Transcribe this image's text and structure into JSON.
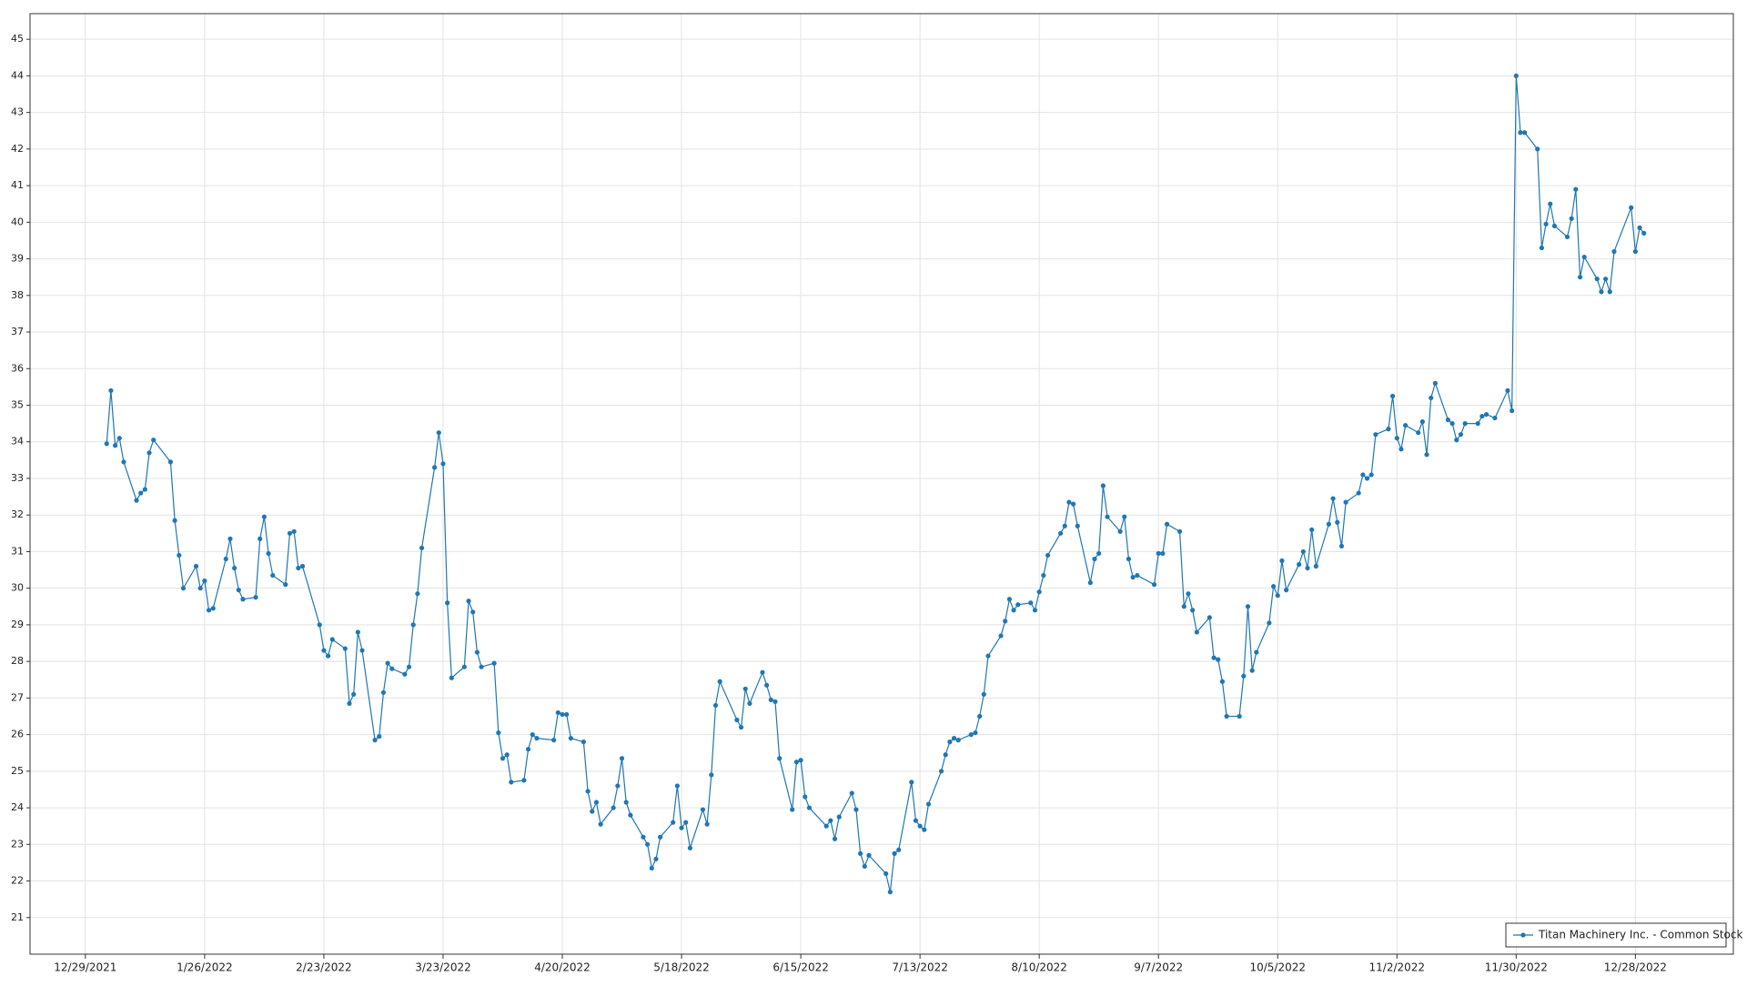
{
  "chart_data": {
    "type": "line",
    "x": [
      "1/3/2022",
      "1/4/2022",
      "1/5/2022",
      "1/6/2022",
      "1/7/2022",
      "1/10/2022",
      "1/11/2022",
      "1/12/2022",
      "1/13/2022",
      "1/14/2022",
      "1/18/2022",
      "1/19/2022",
      "1/20/2022",
      "1/21/2022",
      "1/24/2022",
      "1/25/2022",
      "1/26/2022",
      "1/27/2022",
      "1/28/2022",
      "1/31/2022",
      "2/1/2022",
      "2/2/2022",
      "2/3/2022",
      "2/4/2022",
      "2/7/2022",
      "2/8/2022",
      "2/9/2022",
      "2/10/2022",
      "2/11/2022",
      "2/14/2022",
      "2/15/2022",
      "2/16/2022",
      "2/17/2022",
      "2/18/2022",
      "2/22/2022",
      "2/23/2022",
      "2/24/2022",
      "2/25/2022",
      "2/28/2022",
      "3/1/2022",
      "3/2/2022",
      "3/3/2022",
      "3/4/2022",
      "3/7/2022",
      "3/8/2022",
      "3/9/2022",
      "3/10/2022",
      "3/11/2022",
      "3/14/2022",
      "3/15/2022",
      "3/16/2022",
      "3/17/2022",
      "3/18/2022",
      "3/21/2022",
      "3/22/2022",
      "3/23/2022",
      "3/24/2022",
      "3/25/2022",
      "3/28/2022",
      "3/29/2022",
      "3/30/2022",
      "3/31/2022",
      "4/1/2022",
      "4/4/2022",
      "4/5/2022",
      "4/6/2022",
      "4/7/2022",
      "4/8/2022",
      "4/11/2022",
      "4/12/2022",
      "4/13/2022",
      "4/14/2022",
      "4/18/2022",
      "4/19/2022",
      "4/20/2022",
      "4/21/2022",
      "4/22/2022",
      "4/25/2022",
      "4/26/2022",
      "4/27/2022",
      "4/28/2022",
      "4/29/2022",
      "5/2/2022",
      "5/3/2022",
      "5/4/2022",
      "5/5/2022",
      "5/6/2022",
      "5/9/2022",
      "5/10/2022",
      "5/11/2022",
      "5/12/2022",
      "5/13/2022",
      "5/16/2022",
      "5/17/2022",
      "5/18/2022",
      "5/19/2022",
      "5/20/2022",
      "5/23/2022",
      "5/24/2022",
      "5/25/2022",
      "5/26/2022",
      "5/27/2022",
      "5/31/2022",
      "6/1/2022",
      "6/2/2022",
      "6/3/2022",
      "6/6/2022",
      "6/7/2022",
      "6/8/2022",
      "6/9/2022",
      "6/10/2022",
      "6/13/2022",
      "6/14/2022",
      "6/15/2022",
      "6/16/2022",
      "6/17/2022",
      "6/21/2022",
      "6/22/2022",
      "6/23/2022",
      "6/24/2022",
      "6/27/2022",
      "6/28/2022",
      "6/29/2022",
      "6/30/2022",
      "7/1/2022",
      "7/5/2022",
      "7/6/2022",
      "7/7/2022",
      "7/8/2022",
      "7/11/2022",
      "7/12/2022",
      "7/13/2022",
      "7/14/2022",
      "7/15/2022",
      "7/18/2022",
      "7/19/2022",
      "7/20/2022",
      "7/21/2022",
      "7/22/2022",
      "7/25/2022",
      "7/26/2022",
      "7/27/2022",
      "7/28/2022",
      "7/29/2022",
      "8/1/2022",
      "8/2/2022",
      "8/3/2022",
      "8/4/2022",
      "8/5/2022",
      "8/8/2022",
      "8/9/2022",
      "8/10/2022",
      "8/11/2022",
      "8/12/2022",
      "8/15/2022",
      "8/16/2022",
      "8/17/2022",
      "8/18/2022",
      "8/19/2022",
      "8/22/2022",
      "8/23/2022",
      "8/24/2022",
      "8/25/2022",
      "8/26/2022",
      "8/29/2022",
      "8/30/2022",
      "8/31/2022",
      "9/1/2022",
      "9/2/2022",
      "9/6/2022",
      "9/7/2022",
      "9/8/2022",
      "9/9/2022",
      "9/12/2022",
      "9/13/2022",
      "9/14/2022",
      "9/15/2022",
      "9/16/2022",
      "9/19/2022",
      "9/20/2022",
      "9/21/2022",
      "9/22/2022",
      "9/23/2022",
      "9/26/2022",
      "9/27/2022",
      "9/28/2022",
      "9/29/2022",
      "9/30/2022",
      "10/3/2022",
      "10/4/2022",
      "10/5/2022",
      "10/6/2022",
      "10/7/2022",
      "10/10/2022",
      "10/11/2022",
      "10/12/2022",
      "10/13/2022",
      "10/14/2022",
      "10/17/2022",
      "10/18/2022",
      "10/19/2022",
      "10/20/2022",
      "10/21/2022",
      "10/24/2022",
      "10/25/2022",
      "10/26/2022",
      "10/27/2022",
      "10/28/2022",
      "10/31/2022",
      "11/1/2022",
      "11/2/2022",
      "11/3/2022",
      "11/4/2022",
      "11/7/2022",
      "11/8/2022",
      "11/9/2022",
      "11/10/2022",
      "11/11/2022",
      "11/14/2022",
      "11/15/2022",
      "11/16/2022",
      "11/17/2022",
      "11/18/2022",
      "11/21/2022",
      "11/22/2022",
      "11/23/2022",
      "11/25/2022",
      "11/28/2022",
      "11/29/2022",
      "11/30/2022",
      "12/1/2022",
      "12/2/2022",
      "12/5/2022",
      "12/6/2022",
      "12/7/2022",
      "12/8/2022",
      "12/9/2022",
      "12/12/2022",
      "12/13/2022",
      "12/14/2022",
      "12/15/2022",
      "12/16/2022",
      "12/19/2022",
      "12/20/2022",
      "12/21/2022",
      "12/22/2022",
      "12/23/2022",
      "12/27/2022",
      "12/28/2022",
      "12/29/2022",
      "12/30/2022"
    ],
    "series": [
      {
        "name": "Titan Machinery Inc. - Common Stock",
        "color": "#1f77b4",
        "values": [
          33.95,
          35.4,
          33.9,
          34.1,
          33.45,
          32.4,
          32.6,
          32.7,
          33.7,
          34.05,
          33.45,
          31.85,
          30.9,
          30.0,
          30.6,
          30.0,
          30.2,
          29.4,
          29.45,
          30.8,
          31.35,
          30.55,
          29.95,
          29.7,
          29.75,
          31.35,
          31.95,
          30.95,
          30.35,
          30.1,
          31.5,
          31.55,
          30.55,
          30.6,
          29.0,
          28.3,
          28.15,
          28.6,
          28.35,
          26.85,
          27.1,
          28.8,
          28.3,
          25.85,
          25.95,
          27.15,
          27.95,
          27.8,
          27.65,
          27.85,
          29.0,
          29.85,
          31.1,
          33.3,
          34.25,
          33.4,
          29.6,
          27.55,
          27.85,
          29.65,
          29.35,
          28.25,
          27.85,
          27.95,
          26.05,
          25.35,
          25.45,
          24.7,
          24.75,
          25.6,
          26.0,
          25.9,
          25.85,
          26.6,
          26.55,
          26.55,
          25.9,
          25.8,
          24.45,
          23.9,
          24.15,
          23.55,
          24.0,
          24.6,
          25.35,
          24.15,
          23.8,
          23.2,
          23.0,
          22.35,
          22.6,
          23.2,
          23.6,
          24.6,
          23.45,
          23.6,
          22.9,
          23.95,
          23.55,
          24.9,
          26.8,
          27.45,
          26.4,
          26.2,
          27.25,
          26.85,
          27.7,
          27.35,
          26.95,
          26.9,
          25.35,
          23.95,
          25.25,
          25.3,
          24.3,
          24.0,
          23.5,
          23.65,
          23.15,
          23.75,
          24.4,
          23.95,
          22.75,
          22.4,
          22.7,
          22.2,
          21.7,
          22.75,
          22.85,
          24.7,
          23.65,
          23.5,
          23.4,
          24.1,
          25.0,
          25.45,
          25.8,
          25.9,
          25.85,
          26.0,
          26.05,
          26.5,
          27.1,
          28.15,
          28.7,
          29.1,
          29.7,
          29.4,
          29.55,
          29.6,
          29.4,
          29.9,
          30.35,
          30.9,
          31.5,
          31.7,
          32.35,
          32.3,
          31.7,
          30.15,
          30.8,
          30.95,
          32.8,
          31.95,
          31.55,
          31.95,
          30.8,
          30.3,
          30.35,
          30.1,
          30.95,
          30.95,
          31.75,
          31.55,
          29.5,
          29.85,
          29.4,
          28.8,
          29.2,
          28.1,
          28.05,
          27.45,
          26.5,
          26.5,
          27.6,
          29.5,
          27.75,
          28.25,
          29.05,
          30.05,
          29.8,
          30.75,
          29.95,
          30.65,
          31.0,
          30.55,
          31.6,
          30.6,
          31.75,
          32.45,
          31.8,
          31.15,
          32.35,
          32.6,
          33.1,
          33.0,
          33.1,
          34.2,
          34.35,
          35.25,
          34.1,
          33.8,
          34.45,
          34.25,
          34.55,
          33.65,
          35.2,
          35.6,
          34.6,
          34.5,
          34.05,
          34.2,
          34.5,
          34.5,
          34.7,
          34.75,
          34.65,
          35.4,
          34.85,
          44.0,
          42.45,
          42.45,
          42.0,
          39.3,
          39.95,
          40.5,
          39.9,
          39.6,
          40.1,
          40.9,
          38.5,
          39.05,
          38.45,
          38.1,
          38.45,
          38.1,
          39.2,
          40.4,
          39.2,
          39.85,
          39.7
        ]
      }
    ],
    "xlim": [
      "12/16/2021",
      "1/20/2023"
    ],
    "xticks": [
      "12/29/2021",
      "1/26/2022",
      "2/23/2022",
      "3/23/2022",
      "4/20/2022",
      "5/18/2022",
      "6/15/2022",
      "7/13/2022",
      "8/10/2022",
      "9/7/2022",
      "10/5/2022",
      "11/2/2022",
      "11/30/2022",
      "12/28/2022"
    ],
    "ylim": [
      20,
      45.7
    ],
    "yticks": [
      21,
      22,
      23,
      24,
      25,
      26,
      27,
      28,
      29,
      30,
      31,
      32,
      33,
      34,
      35,
      36,
      37,
      38,
      39,
      40,
      41,
      42,
      43,
      44,
      45
    ],
    "grid": true,
    "legend": "bottom-right"
  }
}
